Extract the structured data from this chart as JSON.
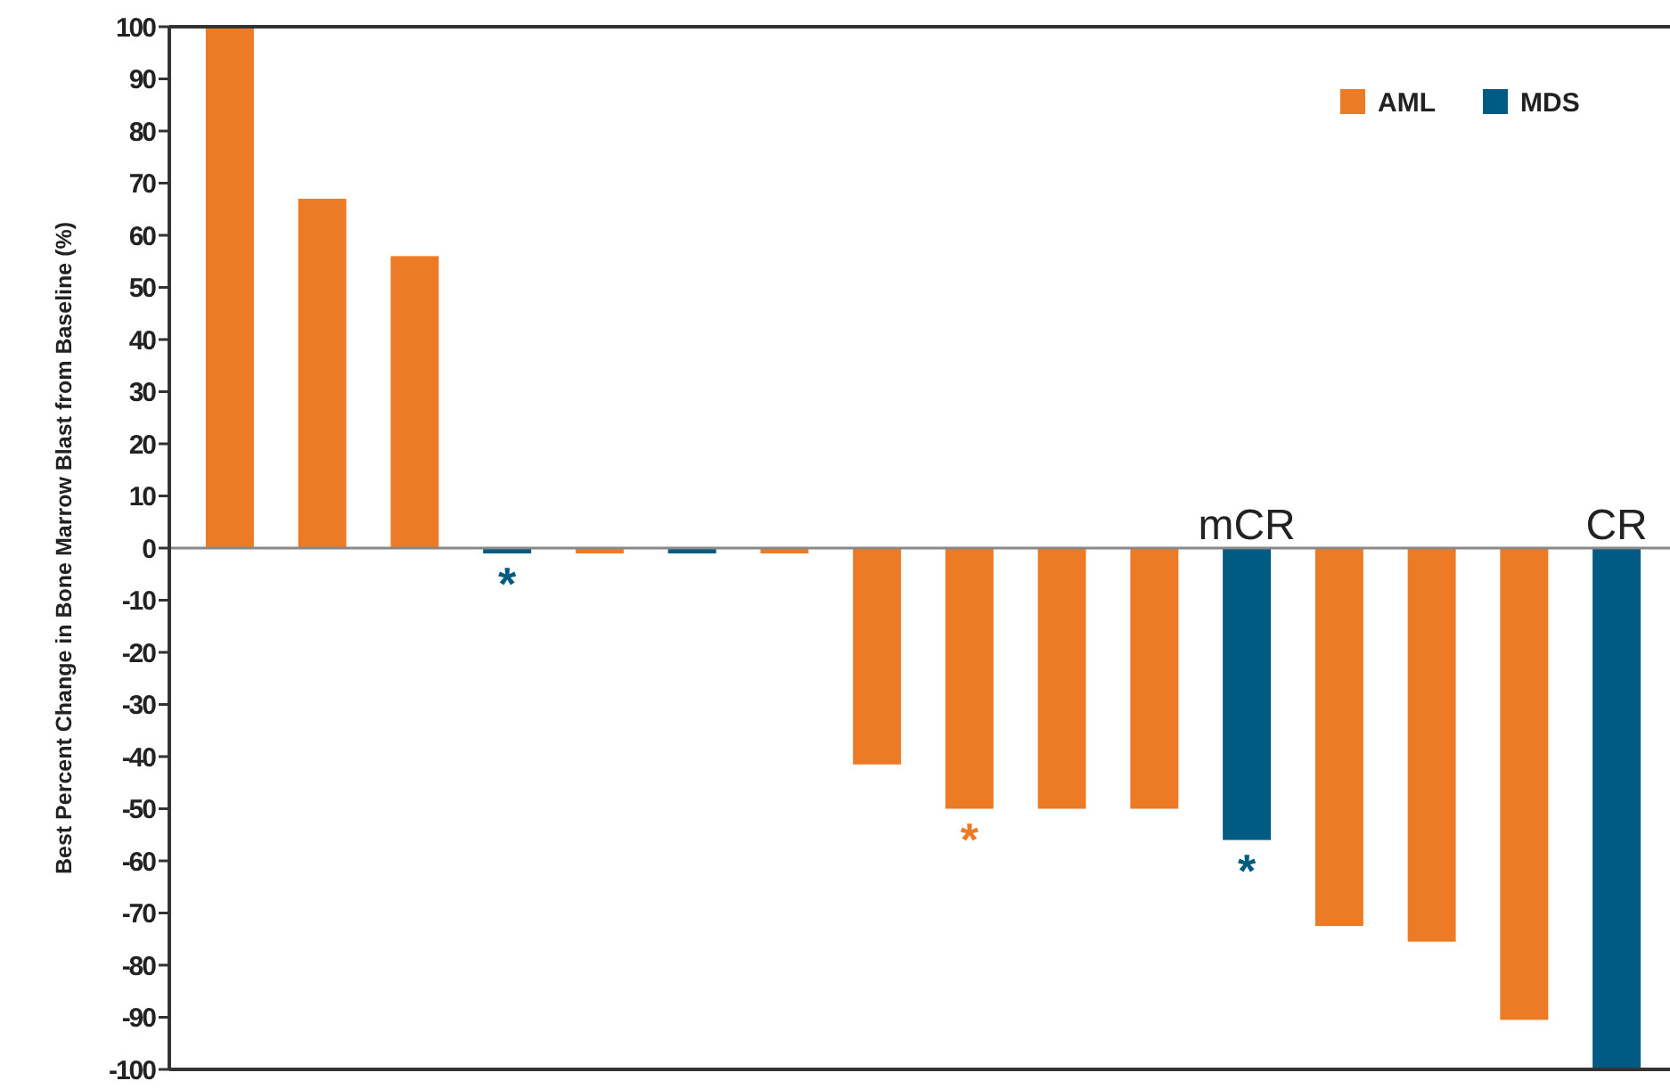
{
  "chart_data": {
    "type": "bar",
    "ylabel": "Best Percent Change in Bone Marrow Blast from Baseline (%)",
    "categories": [
      null,
      null,
      null,
      null,
      null,
      null,
      null,
      null,
      null,
      null,
      null,
      "mCR",
      null,
      null,
      null,
      "CR"
    ],
    "ylim": [
      -100,
      100
    ],
    "yticks": [
      -100,
      -90,
      -80,
      -70,
      -60,
      -50,
      -40,
      -30,
      -20,
      -10,
      0,
      10,
      20,
      30,
      40,
      50,
      60,
      70,
      80,
      90,
      100
    ],
    "series": [
      {
        "name": "AML",
        "color": "#ed7a25",
        "values": [
          100,
          67,
          56,
          null,
          -1,
          null,
          -1,
          -41.5,
          -50,
          -50,
          -50,
          null,
          -72.5,
          -75.5,
          -90.5,
          null
        ]
      },
      {
        "name": "MDS",
        "color": "#005b82",
        "values": [
          null,
          null,
          null,
          -1,
          null,
          -1,
          null,
          null,
          null,
          null,
          null,
          -56,
          null,
          null,
          null,
          -100
        ]
      }
    ],
    "legend": "top right",
    "annotations": [
      {
        "text": "*",
        "y": -1
      },
      {
        "text": "*",
        "y": -50
      },
      {
        "text": "*",
        "x": "mCR",
        "y": -56
      }
    ]
  }
}
